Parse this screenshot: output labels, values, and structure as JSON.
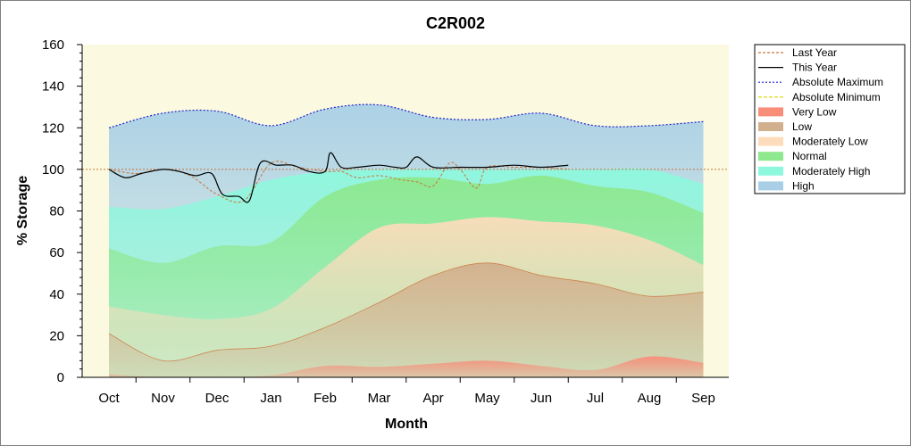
{
  "chart_data": {
    "type": "area",
    "title": "C2R002",
    "xlabel": "Month",
    "ylabel": "% Storage",
    "ylim": [
      0,
      160
    ],
    "yticks": [
      0,
      20,
      40,
      60,
      80,
      100,
      120,
      140,
      160
    ],
    "categories": [
      "Oct",
      "Nov",
      "Dec",
      "Jan",
      "Feb",
      "Mar",
      "Apr",
      "May",
      "Jun",
      "Jul",
      "Aug",
      "Sep"
    ],
    "legend_position": "right",
    "grid": false,
    "reference_line": 100,
    "colors": {
      "plot_bg": "#FBFAE0",
      "very_low": "#F88E7A",
      "low": "#D2B08E",
      "moderately_low": "#FDDCBC",
      "normal": "#8EE88E",
      "moderately_high": "#8EF8DD",
      "high": "#A8CFE6",
      "last_year": "#C8743A",
      "this_year": "#000000",
      "abs_max": "#2222CC",
      "abs_min": "#D8D800"
    },
    "legend": [
      {
        "key": "last_year",
        "label": "Last Year",
        "kind": "line",
        "dash": "3,2"
      },
      {
        "key": "this_year",
        "label": "This Year",
        "kind": "line",
        "dash": ""
      },
      {
        "key": "abs_max",
        "label": "Absolute Maximum",
        "kind": "line",
        "dash": "2,2"
      },
      {
        "key": "abs_min",
        "label": "Absolute Minimum",
        "kind": "line",
        "dash": "4,2"
      },
      {
        "key": "very_low",
        "label": "Very Low",
        "kind": "fill"
      },
      {
        "key": "low",
        "label": "Low",
        "kind": "fill"
      },
      {
        "key": "moderately_low",
        "label": "Moderately Low",
        "kind": "fill"
      },
      {
        "key": "normal",
        "label": "Normal",
        "kind": "fill"
      },
      {
        "key": "moderately_high",
        "label": "Moderately High",
        "kind": "fill"
      },
      {
        "key": "high",
        "label": "High",
        "kind": "fill"
      }
    ],
    "band_x": [
      0,
      1,
      2,
      3,
      4,
      5,
      6,
      7,
      8,
      9,
      10,
      11
    ],
    "bands": {
      "very_low": {
        "lower": [
          1.5,
          0,
          0,
          1,
          5.5,
          5,
          6.5,
          8,
          5.5,
          3.5,
          10,
          7
        ],
        "upper": [
          1.5,
          0,
          0,
          1,
          5.5,
          5,
          6.5,
          8,
          5.5,
          3.5,
          10,
          7
        ]
      },
      "low": {
        "values": [
          21,
          8,
          13,
          15,
          24,
          36,
          49,
          55,
          49,
          45,
          39,
          41
        ]
      },
      "moderately_low": {
        "values": [
          34,
          30,
          28,
          33,
          53,
          72,
          74,
          77,
          75,
          73,
          66,
          54
        ]
      },
      "normal": {
        "values": [
          62,
          55,
          63,
          65,
          87,
          95,
          96,
          93,
          97,
          92,
          89,
          79
        ]
      },
      "moderately_high": {
        "values": [
          82,
          81,
          87,
          95,
          99,
          100,
          100,
          100,
          100,
          100,
          100,
          93
        ]
      },
      "high": {
        "values": [
          120,
          127,
          128,
          121,
          129,
          131,
          125,
          124,
          127,
          121,
          121,
          123
        ]
      }
    },
    "series": [
      {
        "key": "last_year",
        "name": "Last Year",
        "x": [
          0,
          0.5,
          1,
          1.5,
          2,
          2.5,
          3,
          3.5,
          4,
          4.3,
          4.6,
          5,
          5.4,
          5.7,
          6,
          6.3,
          6.5,
          6.8,
          7,
          7.5,
          8,
          8.5
        ],
        "values": [
          100,
          98,
          100,
          97,
          88,
          85,
          103,
          101,
          99,
          99,
          96,
          97,
          95,
          94,
          92,
          103,
          100,
          91,
          101,
          101,
          101,
          100
        ]
      },
      {
        "key": "this_year",
        "name": "This Year",
        "x": [
          0,
          0.3,
          0.6,
          1,
          1.3,
          1.6,
          1.9,
          2.1,
          2.4,
          2.6,
          2.8,
          3.1,
          3.4,
          3.7,
          4,
          4.1,
          4.3,
          4.6,
          5,
          5.3,
          5.5,
          5.7,
          6,
          6.5,
          7,
          7.5,
          8,
          8.5
        ],
        "values": [
          100,
          96,
          98,
          100,
          99,
          97,
          98,
          88,
          87,
          85,
          103,
          102,
          102,
          99,
          99,
          108,
          101,
          101,
          102,
          101,
          101,
          106,
          101,
          101,
          101,
          102,
          101,
          102
        ]
      },
      {
        "key": "abs_max",
        "name": "Absolute Maximum",
        "x": [
          0,
          1,
          2,
          3,
          4,
          5,
          6,
          7,
          8,
          9,
          10,
          11
        ],
        "values": [
          120,
          127,
          128,
          121,
          129,
          131,
          125,
          124,
          127,
          121,
          121,
          123
        ]
      }
    ]
  }
}
